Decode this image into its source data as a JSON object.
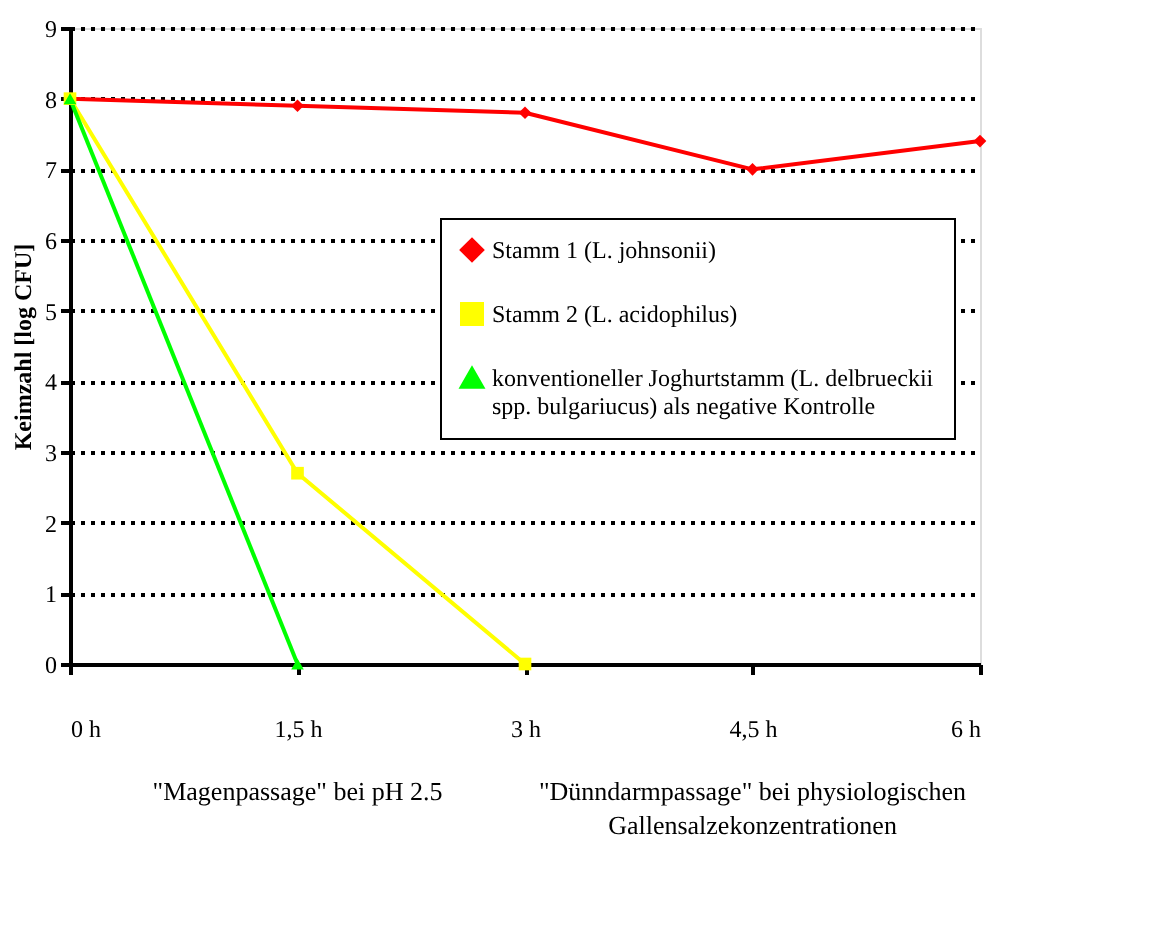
{
  "chart_data": {
    "type": "line",
    "ylabel": "Keimzahl [log CFU]",
    "xlim": [
      0,
      6
    ],
    "xticks": [
      {
        "value": 0,
        "label": "0 h"
      },
      {
        "value": 1.5,
        "label": "1,5 h"
      },
      {
        "value": 3,
        "label": "3 h"
      },
      {
        "value": 4.5,
        "label": "4,5 h"
      },
      {
        "value": 6,
        "label": "6 h"
      }
    ],
    "ylim": [
      0,
      9
    ],
    "yticks": [
      0,
      1,
      2,
      3,
      4,
      5,
      6,
      7,
      8,
      9
    ],
    "grid": "y",
    "legend": "right",
    "line_style": "solid",
    "series": [
      {
        "name": "Stamm 1 (L. johnsonii)",
        "color": "#ff0000",
        "marker": "diamond",
        "x": [
          0,
          1.5,
          3,
          4.5,
          6
        ],
        "values": [
          8,
          7.9,
          7.8,
          7.0,
          7.4
        ]
      },
      {
        "name": "Stamm 2 (L. acidophilus)",
        "color": "#ffff00",
        "marker": "square",
        "x": [
          0,
          1.5,
          3
        ],
        "values": [
          8,
          2.7,
          0
        ]
      },
      {
        "name": "konventioneller Joghurtstamm (L. delbrueckii spp. bulgariucus) als negative Kontrolle",
        "color": "#00ff00",
        "marker": "triangle",
        "x": [
          0,
          1.5
        ],
        "values": [
          8,
          0
        ]
      }
    ],
    "annotations": [
      "\"Magenpassage\" bei pH 2.5",
      "\"Dünndarmpassage\" bei physiologischen Gallensalzekonzentrationen"
    ]
  }
}
